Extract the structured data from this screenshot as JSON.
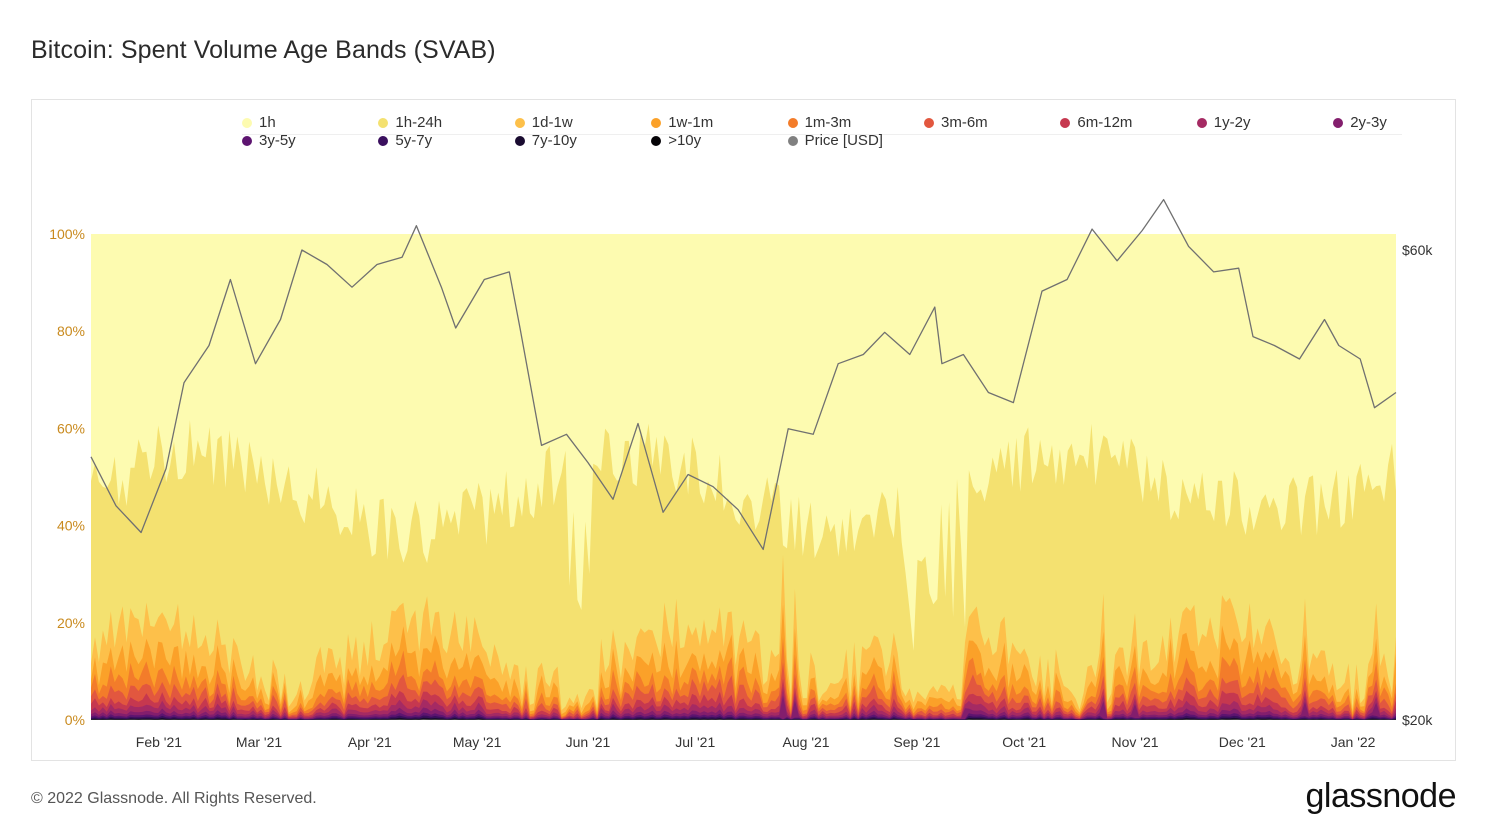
{
  "title": "Bitcoin: Spent Volume Age Bands (SVAB)",
  "footer": "© 2022 Glassnode. All Rights Reserved.",
  "brand": "glassnode",
  "watermark": "glassnode",
  "chart_data": {
    "type": "area",
    "stacked": true,
    "percent": true,
    "x_ticks": [
      "Feb '21",
      "Mar '21",
      "Apr '21",
      "May '21",
      "Jun '21",
      "Jul '21",
      "Aug '21",
      "Sep '21",
      "Oct '21",
      "Nov '21",
      "Dec '21",
      "Jan '22"
    ],
    "x_range": [
      "2021-01-13",
      "2022-01-13"
    ],
    "y_left_ticks": [
      "0%",
      "20%",
      "40%",
      "60%",
      "80%",
      "100%"
    ],
    "y_left_range": [
      0,
      100
    ],
    "y_right_ticks": [
      "$20k",
      "$60k"
    ],
    "y_right_scale": "log",
    "legend": [
      {
        "name": "1h",
        "color": "#fdfbb0"
      },
      {
        "name": "1h-24h",
        "color": "#f4e170"
      },
      {
        "name": "1d-1w",
        "color": "#fdc04a"
      },
      {
        "name": "1w-1m",
        "color": "#fba129"
      },
      {
        "name": "1m-3m",
        "color": "#f37c2a"
      },
      {
        "name": "3m-6m",
        "color": "#e2573f"
      },
      {
        "name": "6m-12m",
        "color": "#c6384f"
      },
      {
        "name": "1y-2y",
        "color": "#a52a63"
      },
      {
        "name": "2y-3y",
        "color": "#831e6d"
      },
      {
        "name": "3y-5y",
        "color": "#5d1470"
      },
      {
        "name": "5y-7y",
        "color": "#3a0f5e"
      },
      {
        "name": "7y-10y",
        "color": "#1a0b30"
      },
      {
        "name": ">10y",
        "color": "#050307"
      },
      {
        "name": "Price [USD]",
        "color": "#808080"
      }
    ],
    "series_price": {
      "name": "Price [USD]",
      "dates": [
        "2021-01-13",
        "2021-01-20",
        "2021-01-27",
        "2021-02-03",
        "2021-02-08",
        "2021-02-15",
        "2021-02-21",
        "2021-02-28",
        "2021-03-07",
        "2021-03-13",
        "2021-03-20",
        "2021-03-27",
        "2021-04-03",
        "2021-04-10",
        "2021-04-14",
        "2021-04-21",
        "2021-04-25",
        "2021-05-03",
        "2021-05-10",
        "2021-05-13",
        "2021-05-19",
        "2021-05-26",
        "2021-06-01",
        "2021-06-08",
        "2021-06-15",
        "2021-06-22",
        "2021-06-29",
        "2021-07-06",
        "2021-07-13",
        "2021-07-20",
        "2021-07-27",
        "2021-08-03",
        "2021-08-10",
        "2021-08-17",
        "2021-08-23",
        "2021-08-30",
        "2021-09-06",
        "2021-09-08",
        "2021-09-14",
        "2021-09-21",
        "2021-09-28",
        "2021-10-06",
        "2021-10-13",
        "2021-10-20",
        "2021-10-27",
        "2021-11-03",
        "2021-11-09",
        "2021-11-16",
        "2021-11-23",
        "2021-11-30",
        "2021-12-04",
        "2021-12-10",
        "2021-12-17",
        "2021-12-24",
        "2021-12-28",
        "2022-01-03",
        "2022-01-07",
        "2022-01-13"
      ],
      "values": [
        37000,
        33000,
        31000,
        36000,
        44000,
        48000,
        56000,
        46000,
        51000,
        60000,
        58000,
        55000,
        58000,
        59000,
        63500,
        55000,
        50000,
        56000,
        57000,
        50000,
        38000,
        39000,
        36500,
        33500,
        40000,
        32500,
        35500,
        34500,
        32700,
        29800,
        39500,
        39000,
        46000,
        47000,
        49500,
        47000,
        52500,
        46000,
        47000,
        43000,
        42000,
        54500,
        56000,
        63000,
        58500,
        62800,
        67500,
        60500,
        57000,
        57500,
        49000,
        48000,
        46500,
        51000,
        48000,
        46500,
        41500,
        43000
      ]
    }
  }
}
